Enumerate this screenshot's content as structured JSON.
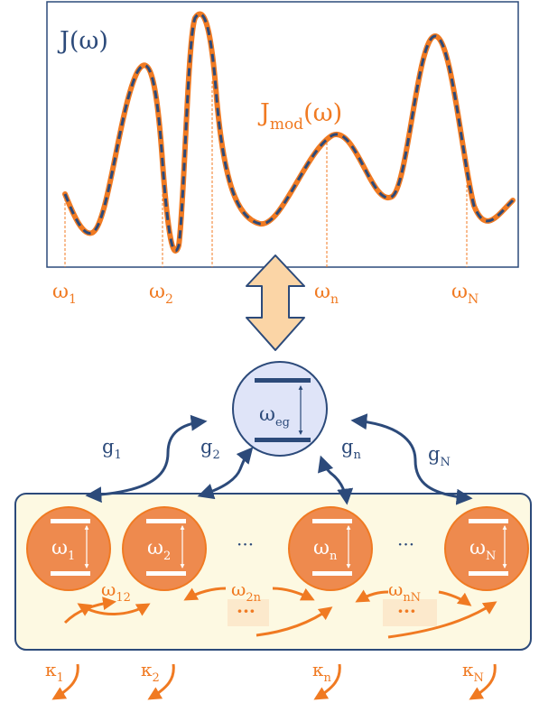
{
  "spectral_plot": {
    "j_label": "J(ω)",
    "jmod_label_main": "J",
    "jmod_label_sub": "mod",
    "jmod_label_tail": "(ω)",
    "freq_labels": [
      {
        "main": "ω",
        "sub": "1"
      },
      {
        "main": "ω",
        "sub": "2"
      },
      {
        "main": "ω",
        "sub": "n"
      },
      {
        "main": "ω",
        "sub": "N"
      }
    ]
  },
  "emitter": {
    "main": "ω",
    "sub": "eg"
  },
  "couplings": [
    {
      "main": "g",
      "sub": "1"
    },
    {
      "main": "g",
      "sub": "2"
    },
    {
      "main": "g",
      "sub": "n"
    },
    {
      "main": "g",
      "sub": "N"
    }
  ],
  "modes": [
    {
      "main": "ω",
      "sub": "1"
    },
    {
      "main": "ω",
      "sub": "2"
    },
    {
      "main": "ω",
      "sub": "n"
    },
    {
      "main": "ω",
      "sub": "N"
    }
  ],
  "ellipsis": [
    "···",
    "···"
  ],
  "mode_couplings": [
    {
      "main": "ω",
      "sub": "12"
    },
    {
      "main": "ω",
      "sub": "2n"
    },
    {
      "main": "ω",
      "sub": "nN"
    }
  ],
  "mode_coupling_dots": [
    "···",
    "···"
  ],
  "losses": [
    {
      "main": "κ",
      "sub": "1"
    },
    {
      "main": "κ",
      "sub": "2"
    },
    {
      "main": "κ",
      "sub": "n"
    },
    {
      "main": "κ",
      "sub": "N"
    }
  ],
  "colors": {
    "navy": "#2c4a7a",
    "orange": "#f07a22",
    "orange_fill": "#ee8a4e",
    "mode_box_fill": "#fdf9e2",
    "emitter_fill": "#dfe4f8",
    "arrow_fill": "#fbd5a6"
  }
}
